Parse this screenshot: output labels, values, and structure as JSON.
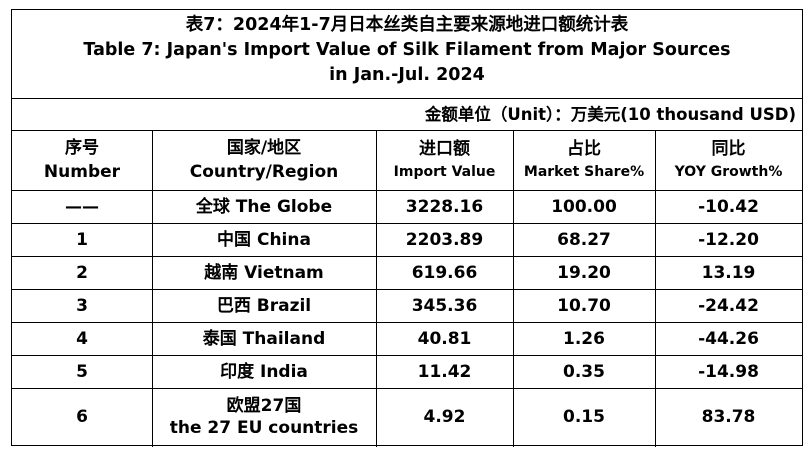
{
  "title": {
    "line1": "表7：2024年1-7月日本丝类自主要来源地进口额统计表",
    "line2": "Table 7: Japan's Import Value of Silk Filament from Major Sources",
    "line3": "in Jan.-Jul. 2024"
  },
  "unit": "金额单位（Unit）：万美元(10 thousand USD)",
  "headers": [
    {
      "zh": "序号",
      "en": "Number"
    },
    {
      "zh": "国家/地区",
      "en": "Country/Region"
    },
    {
      "zh": "进口额",
      "en": "Import Value"
    },
    {
      "zh": "占比",
      "en": "Market Share%"
    },
    {
      "zh": "同比",
      "en": "YOY Growth%"
    }
  ],
  "rows": [
    {
      "number": "——",
      "country": "全球 The Globe",
      "value": "3228.16",
      "share": "100.00",
      "growth": "-10.42"
    },
    {
      "number": "1",
      "country": "中国 China",
      "value": "2203.89",
      "share": "68.27",
      "growth": "-12.20"
    },
    {
      "number": "2",
      "country": "越南 Vietnam",
      "value": "619.66",
      "share": "19.20",
      "growth": "13.19"
    },
    {
      "number": "3",
      "country": "巴西 Brazil",
      "value": "345.36",
      "share": "10.70",
      "growth": "-24.42"
    },
    {
      "number": "4",
      "country": "泰国 Thailand",
      "value": "40.81",
      "share": "1.26",
      "growth": "-44.26"
    },
    {
      "number": "5",
      "country": "印度 India",
      "value": "11.42",
      "share": "0.35",
      "growth": "-14.98"
    },
    {
      "number": "6",
      "country": "欧盟27国",
      "country_line2": "the 27 EU countries",
      "value": "4.92",
      "share": "0.15",
      "growth": "83.78"
    }
  ]
}
